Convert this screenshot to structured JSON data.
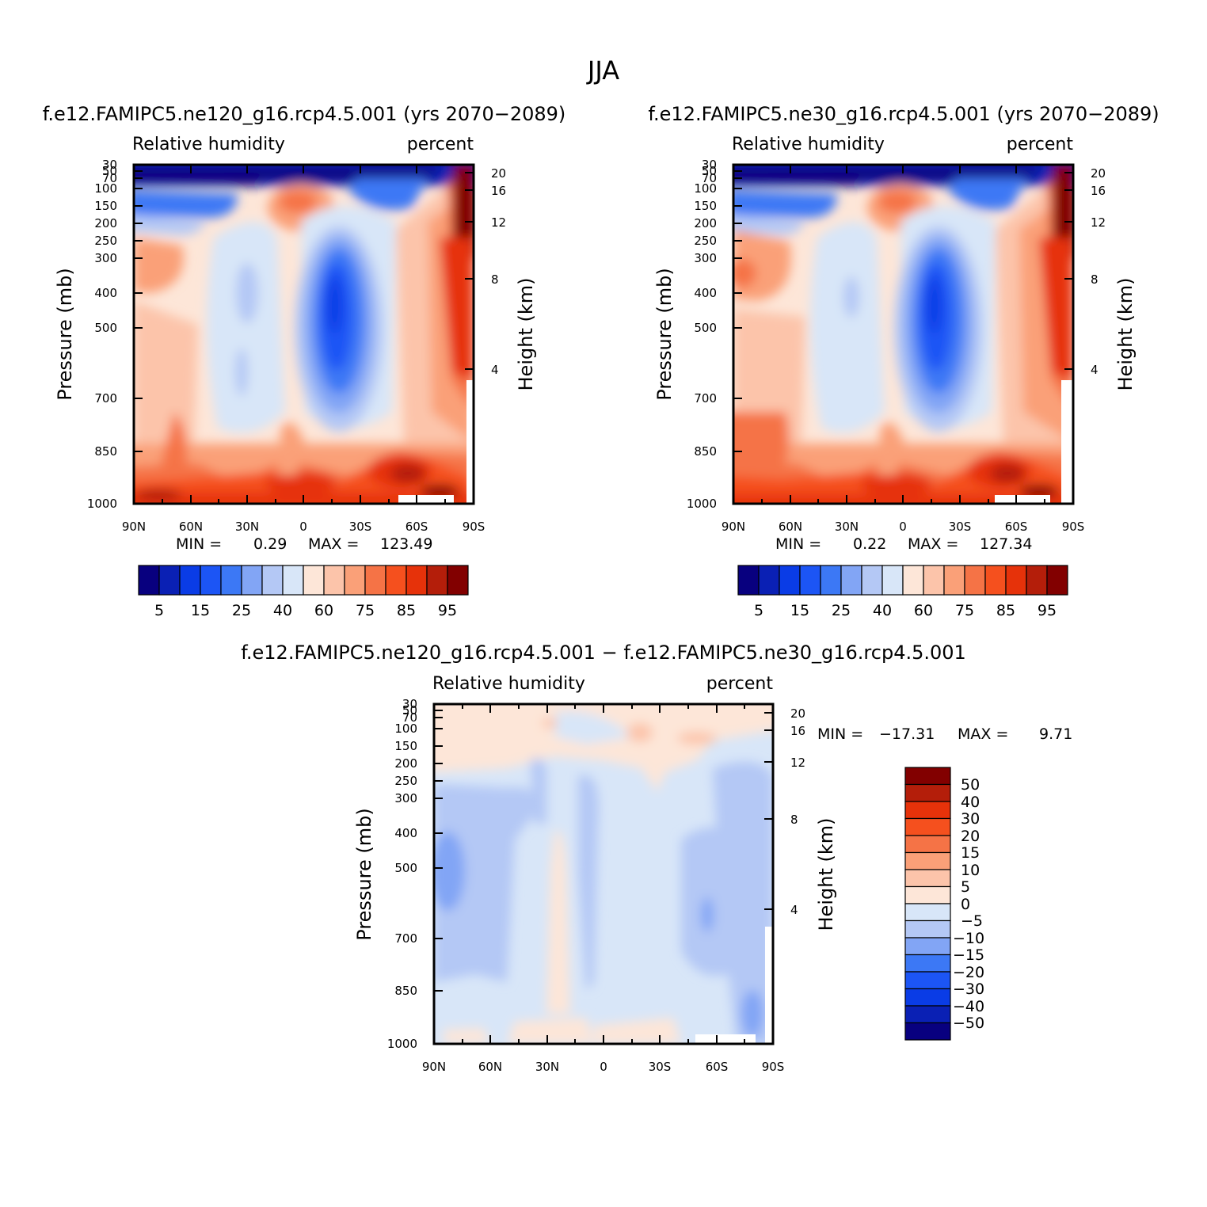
{
  "page_title": "JJA",
  "diff_title": "f.e12.FAMIPC5.ne120_g16.rcp4.5.001 − f.e12.FAMIPC5.ne30_g16.rcp4.5.001",
  "chart_data": [
    {
      "type": "heatmap",
      "id": "ne120",
      "title": "f.e12.FAMIPC5.ne120_g16.rcp4.5.001 (yrs 2070−2089)",
      "left_string": "Relative humidity",
      "right_string": "percent",
      "xlabel": "",
      "ylabel": "Pressure (mb)",
      "y2label": "Height (km)",
      "x_ticks": [
        "90N",
        "60N",
        "30N",
        "0",
        "30S",
        "60S",
        "90S"
      ],
      "y_ticks": [
        "30",
        "50",
        "70",
        "100",
        "150",
        "200",
        "250",
        "300",
        "400",
        "500",
        "700",
        "850",
        "1000"
      ],
      "y2_ticks": [
        "20",
        "16",
        "12",
        "8",
        "4"
      ],
      "min_label": "MIN =",
      "min_value": "0.29",
      "max_label": "MAX =",
      "max_value": "123.49",
      "levels": [
        "5",
        "15",
        "25",
        "40",
        "60",
        "75",
        "85",
        "95"
      ],
      "ylim": [
        30,
        1000
      ]
    },
    {
      "type": "heatmap",
      "id": "ne30",
      "title": "f.e12.FAMIPC5.ne30_g16.rcp4.5.001 (yrs 2070−2089)",
      "left_string": "Relative humidity",
      "right_string": "percent",
      "xlabel": "",
      "ylabel": "Pressure (mb)",
      "y2label": "Height (km)",
      "x_ticks": [
        "90N",
        "60N",
        "30N",
        "0",
        "30S",
        "60S",
        "90S"
      ],
      "y_ticks": [
        "30",
        "50",
        "70",
        "100",
        "150",
        "200",
        "250",
        "300",
        "400",
        "500",
        "700",
        "850",
        "1000"
      ],
      "y2_ticks": [
        "20",
        "16",
        "12",
        "8",
        "4"
      ],
      "min_label": "MIN =",
      "min_value": "0.22",
      "max_label": "MAX =",
      "max_value": "127.34",
      "levels": [
        "5",
        "15",
        "25",
        "40",
        "60",
        "75",
        "85",
        "95"
      ],
      "ylim": [
        30,
        1000
      ]
    },
    {
      "type": "heatmap",
      "id": "diff",
      "title": "",
      "left_string": "Relative humidity",
      "right_string": "percent",
      "xlabel": "",
      "ylabel": "Pressure (mb)",
      "y2label": "Height (km)",
      "x_ticks": [
        "90N",
        "60N",
        "30N",
        "0",
        "30S",
        "60S",
        "90S"
      ],
      "y_ticks": [
        "30",
        "50",
        "70",
        "100",
        "150",
        "200",
        "250",
        "300",
        "400",
        "500",
        "700",
        "850",
        "1000"
      ],
      "y2_ticks": [
        "20",
        "16",
        "12",
        "8",
        "4"
      ],
      "min_label": "MIN =",
      "min_value": "−17.31",
      "max_label": "MAX =",
      "max_value": "9.71",
      "levels": [
        "50",
        "40",
        "30",
        "20",
        "15",
        "10",
        "5",
        "0",
        "−5",
        "−10",
        "−15",
        "−20",
        "−30",
        "−40",
        "−50"
      ],
      "ylim": [
        30,
        1000
      ]
    }
  ],
  "colors": {
    "rh_palette": [
      "#08007f",
      "#0a20b4",
      "#0a3ce6",
      "#1c55f5",
      "#3c78f5",
      "#82a5f5",
      "#b4c8f5",
      "#d8e6f8",
      "#fde6d8",
      "#fcc4aa",
      "#faa078",
      "#f57346",
      "#f5501e",
      "#e6320a",
      "#b41e0a",
      "#820000"
    ],
    "diff_palette": [
      "#820000",
      "#b41e0a",
      "#e6320a",
      "#f5501e",
      "#f57346",
      "#faa078",
      "#fcc4aa",
      "#fde6d8",
      "#d8e6f8",
      "#b4c8f5",
      "#82a5f5",
      "#3c78f5",
      "#1c55f5",
      "#0a3ce6",
      "#0a20b4",
      "#08007f"
    ]
  }
}
